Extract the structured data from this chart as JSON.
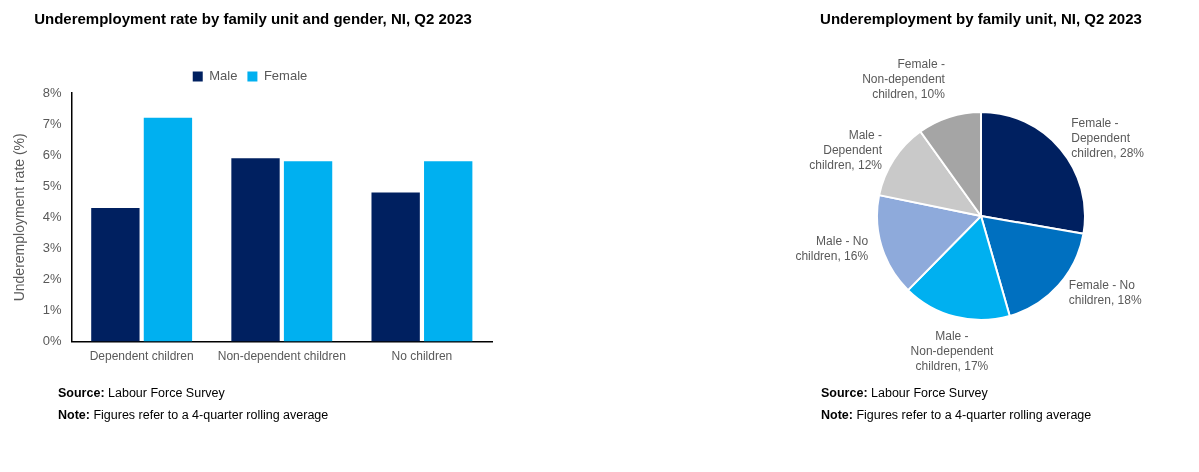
{
  "chart_data": [
    {
      "type": "bar",
      "title": "Underemployment rate by family unit and gender, NI, Q2 2023",
      "ylabel": "Underemployment rate (%)",
      "categories": [
        "Dependent children",
        "Non-dependent children",
        "No children"
      ],
      "series": [
        {
          "name": "Male",
          "color": "#002060",
          "values": [
            4.3,
            5.9,
            4.8
          ]
        },
        {
          "name": "Female",
          "color": "#00b0f0",
          "values": [
            7.2,
            5.8,
            5.8
          ]
        }
      ],
      "ylim": [
        0,
        8
      ],
      "yticks": [
        {
          "value": 0,
          "label": "0%"
        },
        {
          "value": 1,
          "label": "1%"
        },
        {
          "value": 2,
          "label": "2%"
        },
        {
          "value": 3,
          "label": "3%"
        },
        {
          "value": 4,
          "label": "4%"
        },
        {
          "value": 5,
          "label": "5%"
        },
        {
          "value": 6,
          "label": "6%"
        },
        {
          "value": 7,
          "label": "7%"
        },
        {
          "value": 8,
          "label": "8%"
        }
      ],
      "grid": false,
      "legend": "top",
      "annotations": [
        "Source: Labour Force Survey",
        "Note: Figures refer to a 4-quarter rolling average"
      ]
    },
    {
      "type": "pie",
      "title": "Underemployment by family unit, NI, Q2 2023",
      "categories": [
        "Female - Dependent children",
        "Female - No children",
        "Male - Non-dependent children",
        "Male - No children",
        "Male - Dependent children",
        "Female - Non-dependent children"
      ],
      "values": [
        28,
        18,
        17,
        16,
        12,
        10
      ],
      "value_labels": [
        "28%",
        "18%",
        "17%",
        "16%",
        "12%",
        "10%"
      ],
      "colors": [
        "#002060",
        "#0070c0",
        "#00b0f0",
        "#8eaadb",
        "#c9c9c9",
        "#a5a5a5"
      ],
      "legend": false,
      "annotations": [
        "Source: Labour Force Survey",
        "Note: Figures refer to a 4-quarter rolling average"
      ]
    }
  ]
}
